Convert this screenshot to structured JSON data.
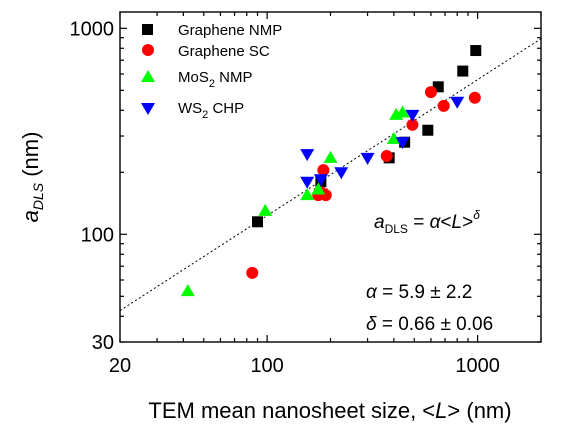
{
  "chart_data": {
    "type": "scatter",
    "xscale": "log",
    "yscale": "log",
    "xlim": [
      20,
      2000
    ],
    "ylim": [
      30,
      1200
    ],
    "xticks": [
      20,
      100,
      1000
    ],
    "yticks": [
      30,
      100,
      1000
    ],
    "xlabel": {
      "pre": "TEM mean nanosheet size, <",
      "italic": "L",
      "post": "> (nm)"
    },
    "ylabel": {
      "main": "a",
      "sub": "DLS",
      "post": " (nm)"
    },
    "legend_position": "top-left",
    "series": [
      {
        "name": "Graphene NMP",
        "name_base": "Graphene NMP",
        "name_sub": "",
        "name_post": "",
        "marker": "square",
        "color": "#000000",
        "points": [
          [
            90,
            115
          ],
          [
            180,
            180
          ],
          [
            380,
            235
          ],
          [
            450,
            280
          ],
          [
            580,
            320
          ],
          [
            650,
            520
          ],
          [
            850,
            620
          ],
          [
            980,
            780
          ]
        ]
      },
      {
        "name": "Graphene SC",
        "name_base": "Graphene SC",
        "name_sub": "",
        "name_post": "",
        "marker": "circle",
        "color": "#ff0000",
        "points": [
          [
            85,
            65
          ],
          [
            175,
            155
          ],
          [
            180,
            160
          ],
          [
            190,
            155
          ],
          [
            185,
            205
          ],
          [
            370,
            240
          ],
          [
            490,
            340
          ],
          [
            600,
            490
          ],
          [
            690,
            420
          ],
          [
            970,
            460
          ]
        ],
        "xerr": [
          [
            85,
            3
          ],
          [
            180,
            12
          ],
          [
            370,
            12
          ],
          [
            490,
            12
          ]
        ]
      },
      {
        "name": "MoS2 NMP",
        "name_base": "MoS",
        "name_sub": "2",
        "name_post": " NMP",
        "marker": "triangle-up",
        "color": "#00ff00",
        "points": [
          [
            42,
            53
          ],
          [
            98,
            130
          ],
          [
            155,
            155
          ],
          [
            175,
            165
          ],
          [
            200,
            235
          ],
          [
            400,
            290
          ],
          [
            410,
            380
          ],
          [
            440,
            390
          ]
        ]
      },
      {
        "name": "WS2 CHP",
        "name_base": "WS",
        "name_sub": "2",
        "name_post": " CHP",
        "marker": "triangle-down",
        "color": "#0000ff",
        "points": [
          [
            155,
            245
          ],
          [
            155,
            180
          ],
          [
            180,
            185
          ],
          [
            225,
            200
          ],
          [
            300,
            235
          ],
          [
            440,
            280
          ],
          [
            490,
            380
          ],
          [
            800,
            440
          ]
        ]
      }
    ],
    "fit": {
      "alpha": 5.9,
      "delta": 0.66,
      "style": "dotted",
      "x_range": [
        20,
        2000
      ]
    },
    "annotations": {
      "fit_formula": {
        "a": "a",
        "sub": "DLS",
        "eq": " = ",
        "alpha": "α",
        "lt": "<",
        "L": "L",
        "gt": ">",
        "exp": "δ"
      },
      "alpha_line": {
        "sym": "α",
        "text": " = 5.9 ± 2.2"
      },
      "delta_line": {
        "sym": "δ",
        "text": " = 0.66 ± 0.06"
      }
    }
  }
}
